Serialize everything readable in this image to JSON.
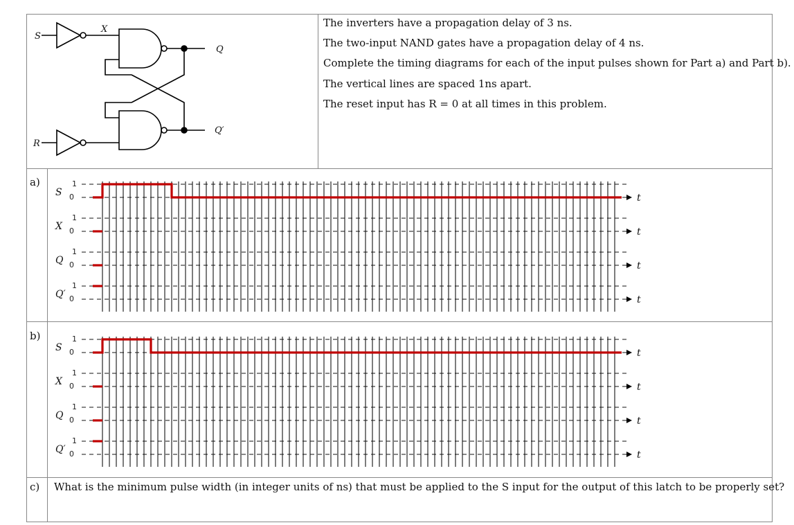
{
  "circuit": {
    "labels": {
      "s": "S",
      "x": "X",
      "r": "R",
      "q": "Q",
      "qbar": "Q′"
    }
  },
  "statements": [
    "The inverters have a propagation delay of 3 ns.",
    "The two-input NAND gates have a propagation delay of 4 ns.",
    "Complete the timing diagrams for each of the input pulses shown for Part a) and Part b).",
    "The vertical lines are spaced 1ns apart.",
    "The reset input has R = 0 at all times in this problem."
  ],
  "parts": [
    {
      "label": "a)",
      "signals": [
        {
          "name": "S",
          "high": "1",
          "low": "0",
          "axis": "t"
        },
        {
          "name": "X",
          "high": "1",
          "low": "0",
          "axis": "t"
        },
        {
          "name": "Q",
          "high": "1",
          "low": "0",
          "axis": "t"
        },
        {
          "name": "Q′",
          "high": "1",
          "low": "0",
          "axis": "t"
        }
      ],
      "s_pulse": {
        "rise_ns": 0,
        "fall_ns": 10
      }
    },
    {
      "label": "b)",
      "signals": [
        {
          "name": "S",
          "high": "1",
          "low": "0",
          "axis": "t"
        },
        {
          "name": "X",
          "high": "1",
          "low": "0",
          "axis": "t"
        },
        {
          "name": "Q",
          "high": "1",
          "low": "0",
          "axis": "t"
        },
        {
          "name": "Q′",
          "high": "1",
          "low": "0",
          "axis": "t"
        }
      ],
      "s_pulse": {
        "rise_ns": 0,
        "fall_ns": 7
      }
    }
  ],
  "timing": {
    "gridlines": 75,
    "spacing_label": "1 ns"
  },
  "question": {
    "label": "c)",
    "text": "What is the minimum pulse width (in integer units of ns) that must be applied to the S input for the output of this latch to be properly set?"
  },
  "colors": {
    "signal": "#c00000",
    "grid": "#111111",
    "border": "#888888"
  }
}
